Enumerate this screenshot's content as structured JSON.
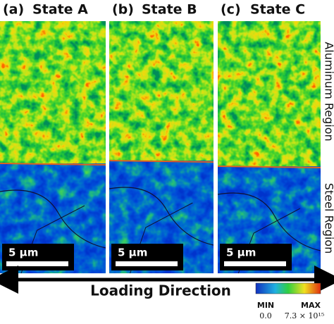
{
  "panels": [
    {
      "label": "(a)",
      "title": "State A",
      "scale_bar": "5 μm"
    },
    {
      "label": "(b)",
      "title": "State B",
      "scale_bar": "5 μm"
    },
    {
      "label": "(c)",
      "title": "State C",
      "scale_bar": "5 μm"
    }
  ],
  "side_labels": {
    "top": "Aluminum Region",
    "bottom": "Steel Region"
  },
  "arrow_label": "Loading Direction",
  "colorbar": {
    "min_label": "MIN",
    "max_label": "MAX",
    "min_value": "0.0",
    "max_value": "7.3 × 10¹⁵"
  }
}
